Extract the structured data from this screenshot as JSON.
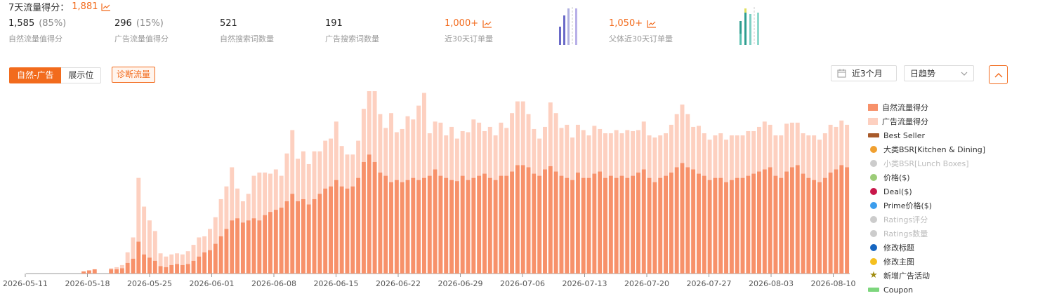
{
  "header": {
    "title": "7天流量得分：",
    "score": "1,881"
  },
  "metrics": [
    {
      "value": "1,585",
      "pct": "(85%)",
      "label": "自然流量值得分",
      "orange": false
    },
    {
      "value": "296",
      "pct": "(15%)",
      "label": "广告流量值得分",
      "orange": false
    },
    {
      "value": "521",
      "pct": "",
      "label": "自然搜索词数量",
      "orange": false
    },
    {
      "value": "191",
      "pct": "",
      "label": "广告搜索词数量",
      "orange": false
    },
    {
      "value": "1,000+",
      "pct": "",
      "label": "近30天订单量",
      "orange": true
    },
    {
      "value": "1,050+",
      "pct": "",
      "label": "父体近30天订单量",
      "orange": true
    }
  ],
  "tabs": {
    "natural_ad": "自然-广告",
    "placement": "展示位",
    "diagnose": "诊断流量"
  },
  "controls": {
    "date_range": "近3个月",
    "granularity": "日趋势"
  },
  "colors": {
    "accent": "#f26b1d",
    "natural": "#f7916a",
    "ad": "#fdd0c0",
    "bsr": "#f0a030",
    "prime": "#3b9ded",
    "deal": "#c8174a",
    "price": "#9ccc78",
    "star": "#a08c10",
    "title_change": "#1565c0"
  },
  "legend": [
    {
      "label": "自然流量得分",
      "kind": "rect",
      "color": "#f7916a",
      "active": true
    },
    {
      "label": "广告流量得分",
      "kind": "rect",
      "color": "#fdd0c0",
      "active": true
    },
    {
      "label": "Best Seller",
      "kind": "line",
      "color": "#a85a2a",
      "active": true
    },
    {
      "label": "大类BSR[Kitchen & Dining]",
      "kind": "dot",
      "color": "#f0a030",
      "active": true
    },
    {
      "label": "小类BSR[Lunch Boxes]",
      "kind": "dot",
      "color": "#cccccc",
      "active": false
    },
    {
      "label": "价格($)",
      "kind": "dot",
      "color": "#9ccc78",
      "active": true
    },
    {
      "label": "Deal($)",
      "kind": "dot",
      "color": "#c8174a",
      "active": true
    },
    {
      "label": "Prime价格($)",
      "kind": "dot",
      "color": "#3b9ded",
      "active": true
    },
    {
      "label": "Ratings评分",
      "kind": "dot",
      "color": "#cccccc",
      "active": false
    },
    {
      "label": "Ratings数量",
      "kind": "dot",
      "color": "#cccccc",
      "active": false
    },
    {
      "label": "修改标题",
      "kind": "dot",
      "color": "#1565c0",
      "active": true
    },
    {
      "label": "修改主图",
      "kind": "dot",
      "color": "#f5c020",
      "active": true
    },
    {
      "label": "新增广告活动",
      "kind": "star",
      "color": "#a08c10",
      "active": true
    },
    {
      "label": "Coupon",
      "kind": "line",
      "color": "#7dd67d",
      "active": true
    }
  ],
  "chart_data": {
    "type": "bar",
    "x_tick_labels": [
      "2026-05-11",
      "2026-05-18",
      "2026-05-25",
      "2026-06-01",
      "2026-06-08",
      "2026-06-15",
      "2026-06-22",
      "2026-06-29",
      "2026-07-06",
      "2026-07-13",
      "2026-07-20",
      "2026-07-27",
      "2026-08-03",
      "2026-08-10"
    ],
    "stacked": true,
    "series": [
      {
        "name": "自然流量得分",
        "values": [
          0,
          0,
          0,
          0,
          0,
          0,
          0,
          0,
          0,
          0,
          2,
          3,
          4,
          0,
          0,
          4,
          4,
          5,
          10,
          14,
          30,
          18,
          15,
          12,
          7,
          6,
          8,
          9,
          8,
          9,
          12,
          16,
          20,
          22,
          28,
          35,
          42,
          50,
          52,
          48,
          50,
          52,
          50,
          55,
          58,
          60,
          62,
          68,
          75,
          68,
          70,
          65,
          70,
          75,
          80,
          82,
          88,
          82,
          80,
          82,
          90,
          105,
          112,
          105,
          95,
          92,
          86,
          88,
          86,
          88,
          90,
          88,
          90,
          92,
          98,
          92,
          90,
          88,
          87,
          92,
          88,
          90,
          92,
          94,
          90,
          88,
          92,
          92,
          96,
          102,
          102,
          100,
          94,
          92,
          98,
          101,
          96,
          92,
          90,
          88,
          95,
          90,
          90,
          94,
          96,
          90,
          92,
          90,
          92,
          90,
          92,
          95,
          98,
          90,
          86,
          90,
          92,
          95,
          100,
          104,
          100,
          98,
          94,
          92,
          88,
          90,
          90,
          86,
          88,
          90,
          90,
          92,
          94,
          96,
          98,
          100,
          92,
          90,
          96,
          100,
          102,
          94,
          90,
          88,
          86,
          90,
          95,
          98,
          102,
          100
        ]
      },
      {
        "name": "广告流量得分",
        "values": [
          0,
          0,
          0,
          0,
          0,
          0,
          0,
          0,
          0,
          0,
          0,
          0,
          0,
          0,
          0,
          1,
          2,
          3,
          10,
          20,
          60,
          45,
          35,
          28,
          12,
          10,
          10,
          10,
          10,
          12,
          15,
          18,
          15,
          20,
          25,
          35,
          40,
          50,
          28,
          20,
          25,
          40,
          45,
          40,
          36,
          38,
          30,
          45,
          60,
          40,
          45,
          38,
          45,
          40,
          45,
          45,
          55,
          38,
          32,
          30,
          35,
          50,
          70,
          75,
          55,
          45,
          65,
          45,
          50,
          60,
          55,
          70,
          80,
          40,
          45,
          50,
          40,
          50,
          40,
          42,
          45,
          55,
          50,
          40,
          48,
          42,
          50,
          45,
          55,
          60,
          60,
          50,
          42,
          35,
          40,
          60,
          55,
          45,
          50,
          40,
          45,
          45,
          40,
          45,
          40,
          42,
          40,
          45,
          40,
          45,
          42,
          40,
          45,
          40,
          42,
          40,
          40,
          45,
          50,
          55,
          50,
          40,
          45,
          40,
          38,
          40,
          42,
          40,
          42,
          40,
          40,
          42,
          40,
          42,
          45,
          40,
          38,
          40,
          45,
          42,
          40,
          38,
          40,
          42,
          40,
          42,
          45,
          40,
          42,
          40
        ]
      }
    ],
    "legend_position": "right"
  }
}
